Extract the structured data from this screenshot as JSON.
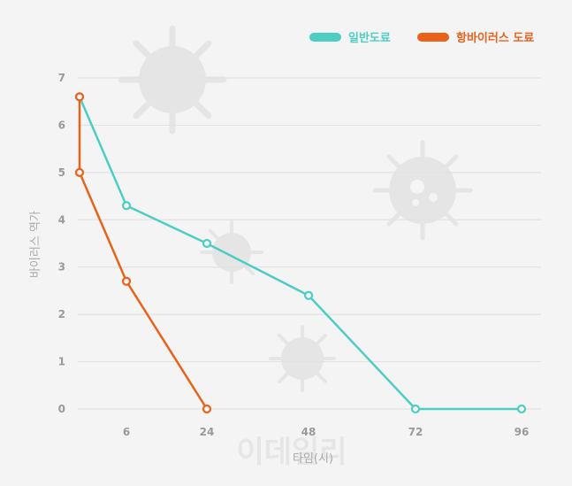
{
  "chart_data": {
    "type": "line",
    "xlabel": "타임(시)",
    "ylabel": "바이러스 역가",
    "x_ticks": [
      "6",
      "24",
      "48",
      "72",
      "96"
    ],
    "y_ticks": [
      "0",
      "1",
      "2",
      "3",
      "4",
      "5",
      "6",
      "7"
    ],
    "ylim": [
      0,
      7
    ],
    "grid": true,
    "legend_position": "top-right",
    "series": [
      {
        "name": "일반도료",
        "color": "#4ecdc4",
        "points": [
          {
            "x": "0",
            "y": 6.6
          },
          {
            "x": "6",
            "y": 4.3
          },
          {
            "x": "24",
            "y": 3.5
          },
          {
            "x": "48",
            "y": 2.4
          },
          {
            "x": "72",
            "y": 0
          },
          {
            "x": "96",
            "y": 0
          }
        ]
      },
      {
        "name": "항바이러스 도료",
        "color": "#e8621a",
        "points": [
          {
            "x": "0",
            "y": 6.6
          },
          {
            "x": "0",
            "y": 5.0
          },
          {
            "x": "6",
            "y": 2.7
          },
          {
            "x": "24",
            "y": 0
          }
        ]
      }
    ]
  },
  "watermark": "이데일리"
}
